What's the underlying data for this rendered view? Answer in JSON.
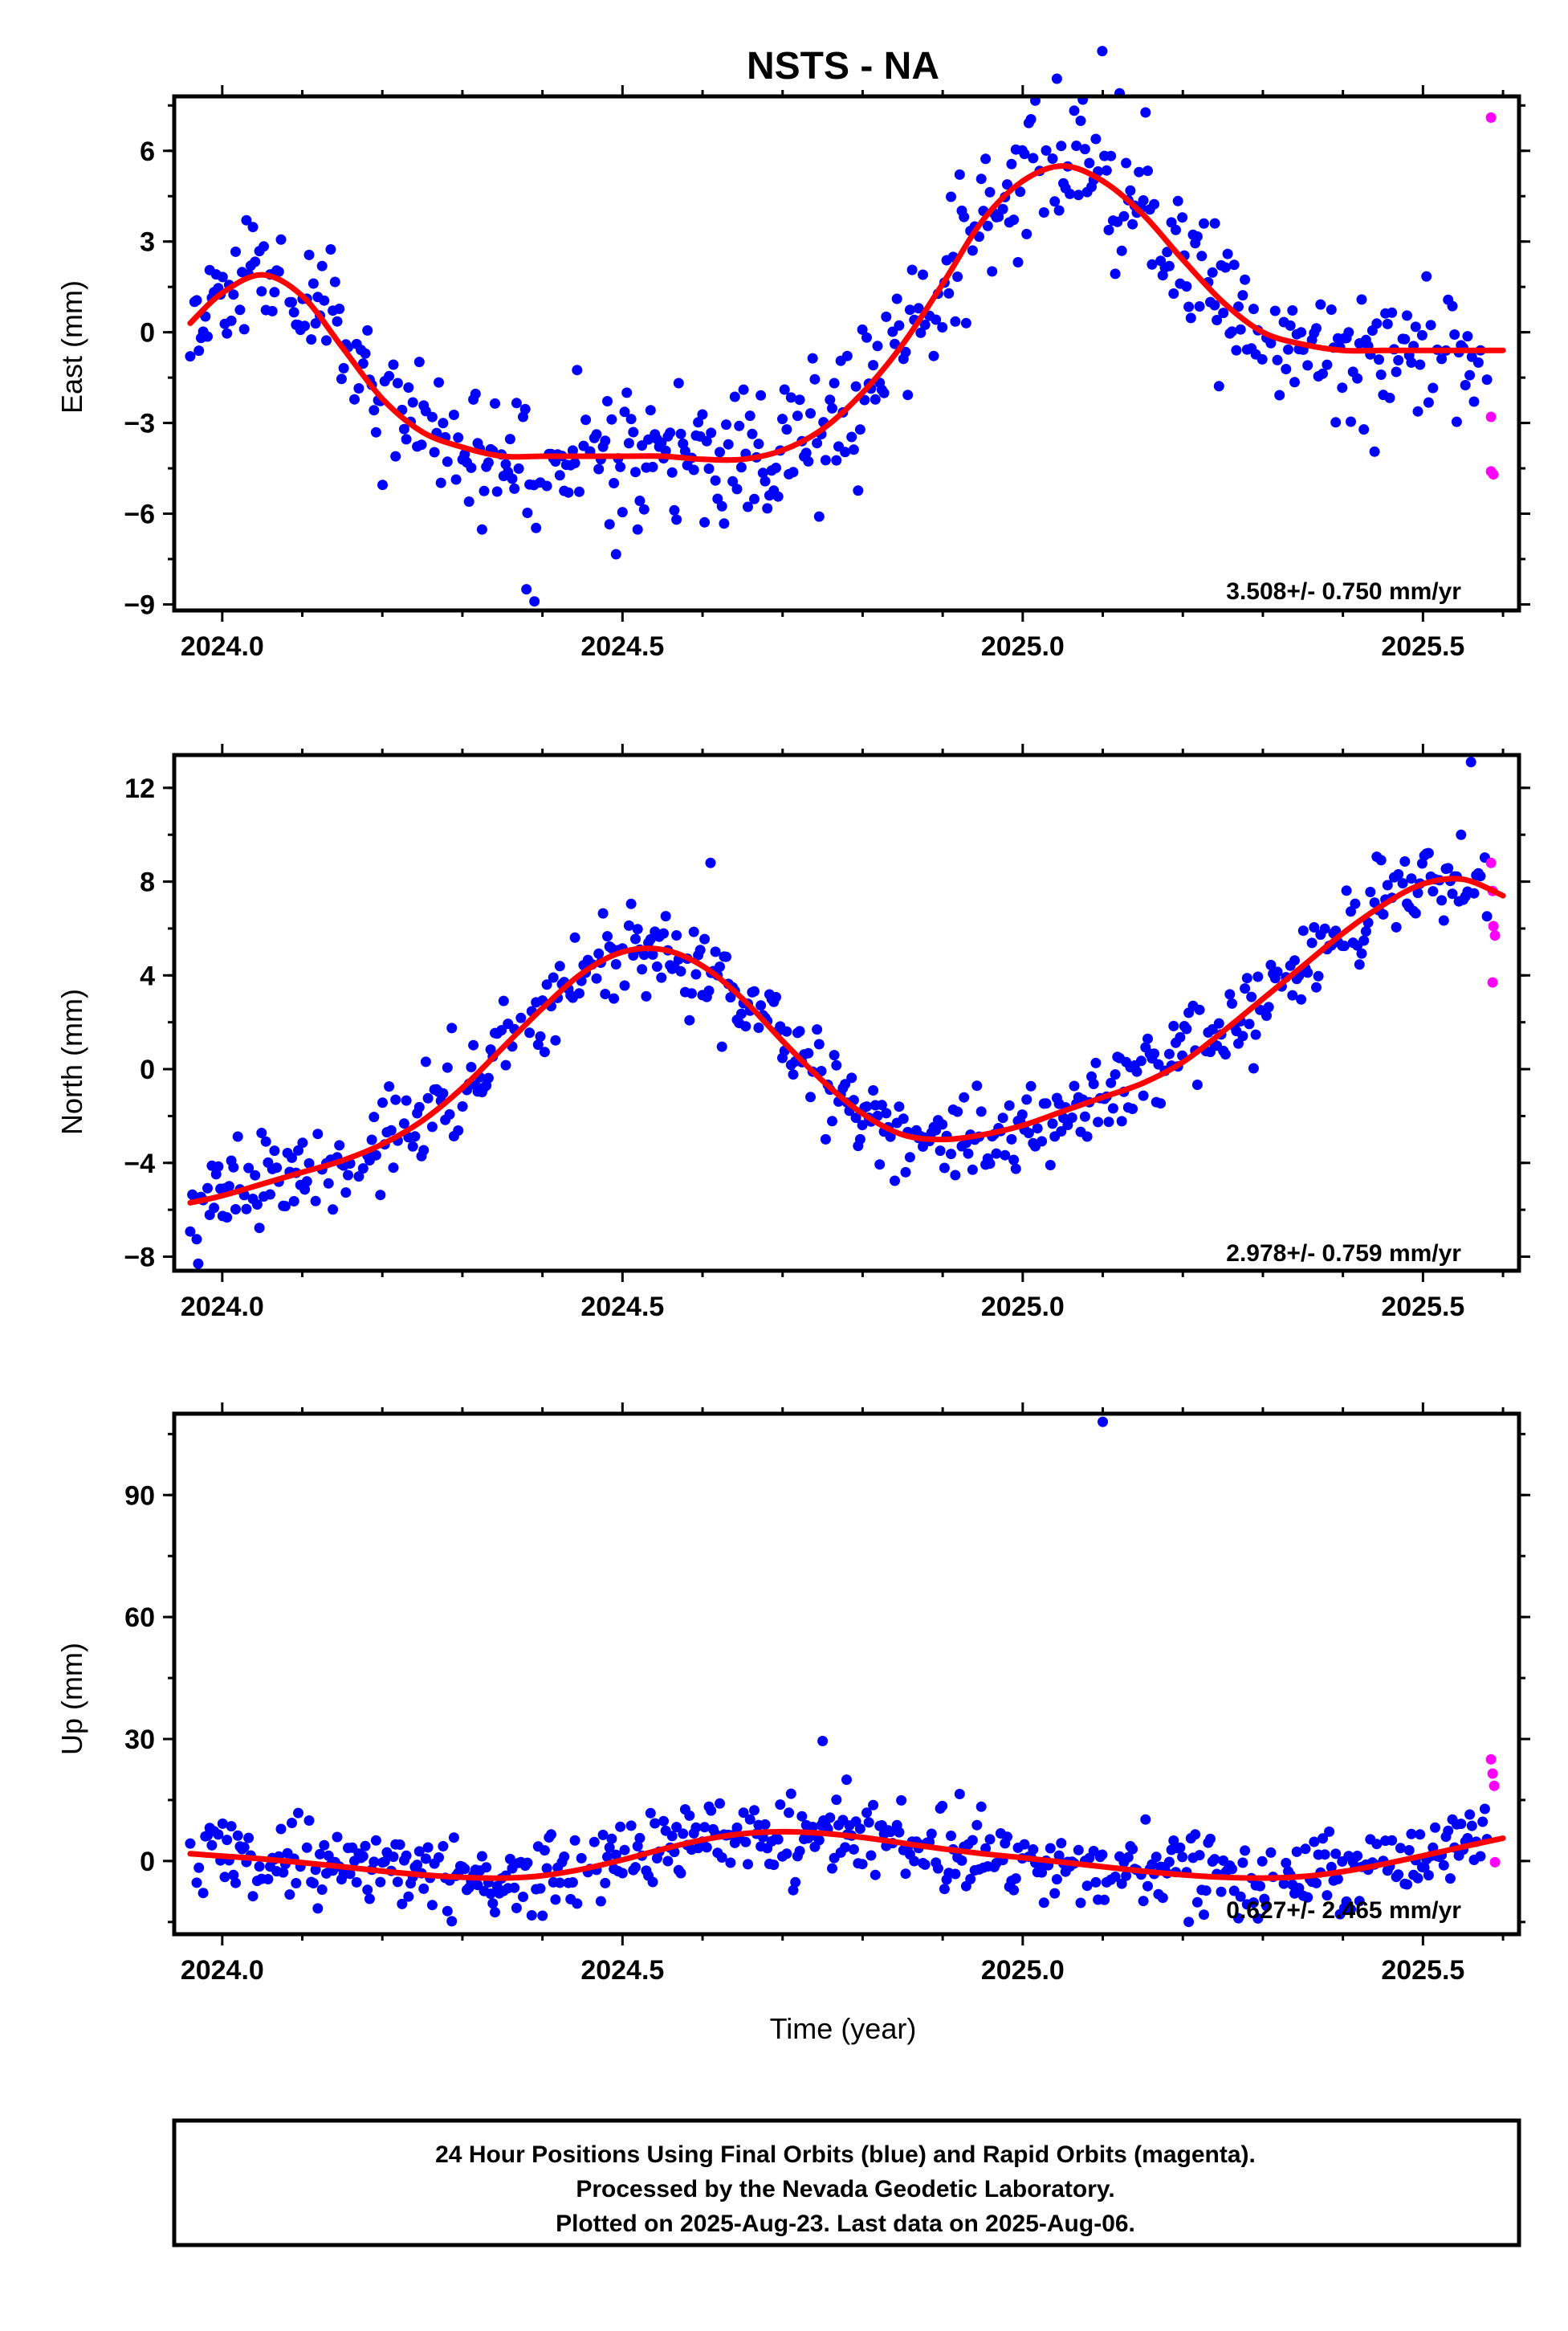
{
  "chart_data": {
    "type": "scatter",
    "title": "NSTS - NA",
    "xlabel": "Time (year)",
    "xlim": [
      2023.94,
      2025.62
    ],
    "x_ticks": [
      "2024.0",
      "2024.5",
      "2025.0",
      "2025.5"
    ],
    "colors": {
      "final": "#0000ff",
      "rapid": "#ff00ff",
      "fit": "#ff0000"
    },
    "panels": [
      {
        "ylabel": "East (mm)",
        "ylim": [
          -9.2,
          7.8
        ],
        "y_ticks": [
          "6",
          "3",
          "0",
          "-3",
          "-6",
          "-9"
        ],
        "rate_text": "3.508+/- 0.750 mm/yr",
        "fit_x": [
          2023.96,
          2024.0,
          2024.05,
          2024.1,
          2024.15,
          2024.2,
          2024.25,
          2024.3,
          2024.35,
          2024.4,
          2024.45,
          2024.5,
          2024.55,
          2024.6,
          2024.65,
          2024.7,
          2024.75,
          2024.8,
          2024.85,
          2024.9,
          2024.95,
          2025.0,
          2025.05,
          2025.1,
          2025.15,
          2025.2,
          2025.25,
          2025.3,
          2025.35,
          2025.4,
          2025.45,
          2025.5,
          2025.55,
          2025.6
        ],
        "fit_y": [
          0.3,
          1.3,
          1.9,
          1.2,
          -0.5,
          -2.2,
          -3.3,
          -3.8,
          -4.1,
          -4.1,
          -4.1,
          -4.1,
          -4.1,
          -4.2,
          -4.2,
          -3.9,
          -3.2,
          -2.0,
          -0.4,
          1.6,
          3.7,
          5.0,
          5.5,
          5.0,
          3.9,
          2.4,
          1.0,
          0.0,
          -0.4,
          -0.6,
          -0.6,
          -0.6,
          -0.6,
          -0.6
        ],
        "rapid": [
          [
            2025.585,
            7.1
          ],
          [
            2025.585,
            -2.8
          ],
          [
            2025.585,
            -4.6
          ],
          [
            2025.588,
            -4.7
          ]
        ],
        "final_seed": 11,
        "final_noise": 1.15,
        "outliers": [
          [
            2024.38,
            -8.5
          ],
          [
            2024.39,
            -8.9
          ],
          [
            2025.24,
            3.6
          ]
        ]
      },
      {
        "ylabel": "North (mm)",
        "ylim": [
          -8.6,
          13.4
        ],
        "y_ticks": [
          "12",
          "8",
          "4",
          "0",
          "-4",
          "-8"
        ],
        "rate_text": "2.978+/- 0.759 mm/yr",
        "fit_x": [
          2023.96,
          2024.0,
          2024.05,
          2024.1,
          2024.15,
          2024.2,
          2024.25,
          2024.3,
          2024.35,
          2024.4,
          2024.45,
          2024.5,
          2024.55,
          2024.6,
          2024.65,
          2024.7,
          2024.75,
          2024.8,
          2024.85,
          2024.9,
          2024.95,
          2025.0,
          2025.05,
          2025.1,
          2025.15,
          2025.2,
          2025.25,
          2025.3,
          2025.35,
          2025.4,
          2025.45,
          2025.5,
          2025.55,
          2025.6
        ],
        "fit_y": [
          -5.7,
          -5.4,
          -4.9,
          -4.4,
          -3.9,
          -3.2,
          -2.2,
          -0.8,
          0.9,
          2.6,
          4.1,
          5.0,
          5.1,
          4.4,
          3.0,
          1.2,
          -0.5,
          -1.9,
          -2.8,
          -3.0,
          -2.8,
          -2.4,
          -1.8,
          -1.2,
          -0.6,
          0.3,
          1.6,
          3.0,
          4.4,
          5.8,
          7.0,
          7.9,
          8.1,
          7.4
        ],
        "rapid": [
          [
            2025.585,
            8.8
          ],
          [
            2025.587,
            7.6
          ],
          [
            2025.588,
            6.1
          ],
          [
            2025.59,
            5.7
          ],
          [
            2025.587,
            3.7
          ]
        ],
        "final_seed": 23,
        "final_noise": 0.95,
        "outliers": [
          [
            2024.61,
            8.8
          ],
          [
            2025.56,
            13.1
          ],
          [
            2023.97,
            -8.3
          ]
        ]
      },
      {
        "ylabel": "Up (mm)",
        "ylim": [
          -18,
          110
        ],
        "y_ticks": [
          "90",
          "60",
          "30",
          "0"
        ],
        "rate_text": "0.627+/- 2.465 mm/yr",
        "fit_x": [
          2023.96,
          2024.0,
          2024.05,
          2024.1,
          2024.15,
          2024.2,
          2024.25,
          2024.3,
          2024.35,
          2024.4,
          2024.45,
          2024.5,
          2024.55,
          2024.6,
          2024.65,
          2024.7,
          2024.75,
          2024.8,
          2024.85,
          2024.9,
          2024.95,
          2025.0,
          2025.05,
          2025.1,
          2025.15,
          2025.2,
          2025.25,
          2025.3,
          2025.35,
          2025.4,
          2025.45,
          2025.5,
          2025.55,
          2025.6
        ],
        "fit_y": [
          1.8,
          1.2,
          0.5,
          -0.4,
          -1.4,
          -2.5,
          -3.4,
          -4.0,
          -4.2,
          -3.6,
          -2.0,
          0.3,
          2.9,
          5.2,
          6.7,
          7.2,
          6.8,
          5.8,
          4.4,
          3.0,
          1.8,
          0.8,
          -0.3,
          -1.4,
          -2.5,
          -3.4,
          -4.0,
          -4.2,
          -3.8,
          -2.6,
          -0.8,
          1.3,
          3.5,
          5.6
        ],
        "rapid": [
          [
            2025.585,
            25
          ],
          [
            2025.587,
            21.5
          ],
          [
            2025.589,
            18.5
          ],
          [
            2025.59,
            -0.3
          ]
        ],
        "final_seed": 37,
        "final_noise": 4.6,
        "outliers": [
          [
            2025.1,
            108
          ],
          [
            2024.75,
            29.5
          ],
          [
            2024.78,
            20
          ]
        ]
      }
    ]
  },
  "footer": {
    "line1": "24 Hour Positions Using Final Orbits (blue) and Rapid Orbits (magenta).",
    "line2": "Processed by the Nevada Geodetic Laboratory.",
    "line3": "Plotted on 2025-Aug-23. Last data on 2025-Aug-06."
  }
}
